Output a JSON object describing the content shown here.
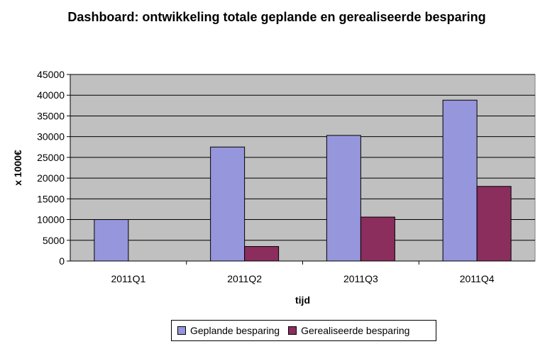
{
  "chart_data": {
    "type": "bar",
    "title": "Dashboard: ontwikkeling totale geplande en gerealiseerde besparing",
    "xlabel": "tijd",
    "ylabel": "x 1000€",
    "categories": [
      "2011Q1",
      "2011Q2",
      "2011Q3",
      "2011Q4"
    ],
    "series": [
      {
        "name": "Geplande besparing",
        "values": [
          10000,
          27500,
          30300,
          38800
        ],
        "color": "#9696dc"
      },
      {
        "name": "Gerealiseerde besparing",
        "values": [
          0,
          3500,
          10600,
          18000
        ],
        "color": "#8b2e5e"
      }
    ],
    "ylim": [
      0,
      45000
    ],
    "yticks": [
      "0",
      "5000",
      "10000",
      "15000",
      "20000",
      "25000",
      "30000",
      "35000",
      "40000",
      "45000"
    ],
    "grid": true,
    "plot_background": "#c0c0c0",
    "legend_position": "bottom"
  }
}
